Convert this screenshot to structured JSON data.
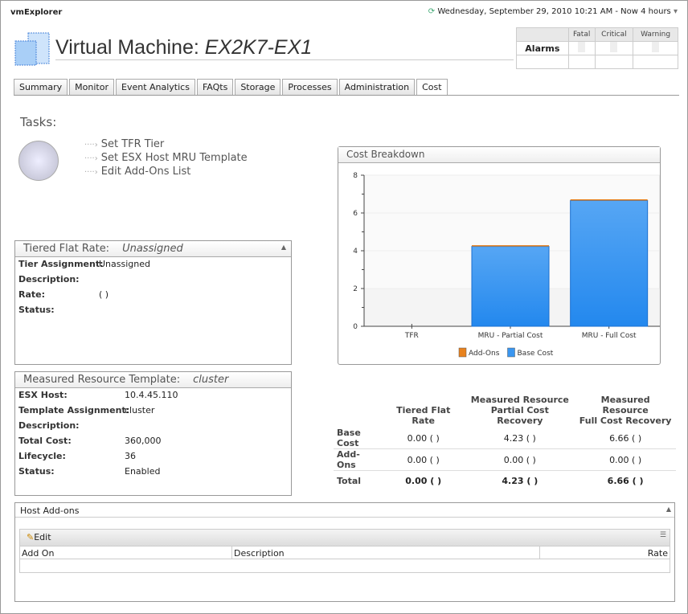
{
  "app": {
    "name": "vmExplorer",
    "timerange": "Wednesday, September 29, 2010 10:21 AM - Now 4 hours"
  },
  "header": {
    "title_prefix": "Virtual Machine: ",
    "title_name": "EX2K7-EX1"
  },
  "alarms": {
    "label": "Alarms",
    "columns": [
      "Fatal",
      "Critical",
      "Warning"
    ]
  },
  "tabs": [
    "Summary",
    "Monitor",
    "Event Analytics",
    "FAQts",
    "Storage",
    "Processes",
    "Administration",
    "Cost"
  ],
  "active_tab": "Cost",
  "tasks": {
    "heading": "Tasks:",
    "items": [
      "Set TFR Tier",
      "Set ESX Host MRU Template",
      "Edit Add-Ons List"
    ]
  },
  "tfr": {
    "title": "Tiered Flat Rate:",
    "subtitle": "Unassigned",
    "rows": [
      {
        "k": "Tier Assignment:",
        "v": "Unassigned"
      },
      {
        "k": "Description:",
        "v": ""
      },
      {
        "k": "Rate:",
        "v": "( )"
      },
      {
        "k": "Status:",
        "v": ""
      }
    ]
  },
  "mrt": {
    "title": "Measured Resource Template:",
    "subtitle": "cluster",
    "rows": [
      {
        "k": "ESX Host:",
        "v": "10.4.45.110"
      },
      {
        "k": "Template Assignment:",
        "v": "cluster"
      },
      {
        "k": "Description:",
        "v": ""
      },
      {
        "k": "Total Cost:",
        "v": "360,000"
      },
      {
        "k": "Lifecycle:",
        "v": "36"
      },
      {
        "k": "Status:",
        "v": "Enabled"
      }
    ]
  },
  "chart_data": {
    "type": "bar",
    "stacked": true,
    "title": "Cost Breakdown",
    "categories": [
      "TFR",
      "MRU - Partial Cost",
      "MRU - Full Cost"
    ],
    "series": [
      {
        "name": "Base Cost",
        "values": [
          0,
          4.23,
          6.66
        ],
        "color": "#3a96f0"
      },
      {
        "name": "Add-Ons",
        "values": [
          0,
          0,
          0
        ],
        "color": "#e8821e"
      }
    ],
    "legend_order": [
      "Add-Ons",
      "Base Cost"
    ],
    "ylim": [
      0,
      8
    ],
    "yticks": [
      0,
      2,
      4,
      6,
      8
    ],
    "legend": "bottom",
    "grid": true
  },
  "cost_table": {
    "headers": [
      "",
      "Tiered Flat Rate",
      "Measured Resource\nPartial Cost Recovery",
      "Measured Resource\nFull Cost Recovery"
    ],
    "rows": [
      {
        "label": "Base Cost",
        "values": [
          "0.00 ( )",
          "4.23 ( )",
          "6.66 ( )"
        ]
      },
      {
        "label": "Add-Ons",
        "values": [
          "0.00 ( )",
          "0.00 ( )",
          "0.00 ( )"
        ]
      },
      {
        "label": "Total",
        "values": [
          "0.00 ( )",
          "4.23 ( )",
          "6.66 ( )"
        ]
      }
    ]
  },
  "addons": {
    "title": "Host Add-ons",
    "edit": "Edit",
    "columns": [
      "Add On",
      "Description",
      "Rate"
    ]
  }
}
